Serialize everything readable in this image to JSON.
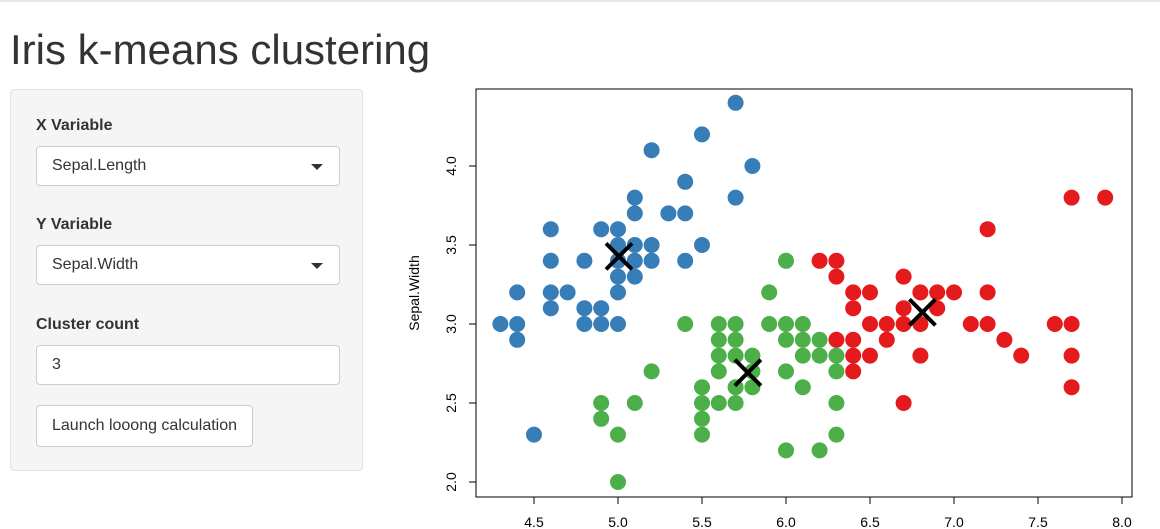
{
  "title": "Iris k-means clustering",
  "sidebar": {
    "x_label": "X Variable",
    "x_value": "Sepal.Length",
    "y_label": "Y Variable",
    "y_value": "Sepal.Width",
    "count_label": "Cluster count",
    "count_value": "3",
    "button_label": "Launch looong calculation"
  },
  "chart_data": {
    "type": "scatter",
    "xlabel": "",
    "ylabel": "Sepal.Width",
    "xlim": [
      4.3,
      8.0
    ],
    "ylim": [
      2.0,
      4.4
    ],
    "x_ticks": [
      "4.5",
      "5.0",
      "5.5",
      "6.0",
      "6.5",
      "7.0",
      "7.5",
      "8.0"
    ],
    "y_ticks": [
      "2.0",
      "2.5",
      "3.0",
      "3.5",
      "4.0"
    ],
    "colors": {
      "1": "#377eb8",
      "2": "#4daf4a",
      "3": "#e41a1c"
    },
    "centers": [
      [
        5.006,
        3.428
      ],
      [
        5.773,
        2.692
      ],
      [
        6.812,
        3.074
      ]
    ],
    "points": [
      [
        5.1,
        3.5,
        1
      ],
      [
        4.9,
        3.0,
        1
      ],
      [
        4.7,
        3.2,
        1
      ],
      [
        4.6,
        3.1,
        1
      ],
      [
        5.0,
        3.6,
        1
      ],
      [
        5.4,
        3.9,
        1
      ],
      [
        4.6,
        3.4,
        1
      ],
      [
        5.0,
        3.4,
        1
      ],
      [
        4.4,
        2.9,
        1
      ],
      [
        4.9,
        3.1,
        1
      ],
      [
        5.4,
        3.7,
        1
      ],
      [
        4.8,
        3.4,
        1
      ],
      [
        4.8,
        3.0,
        1
      ],
      [
        4.3,
        3.0,
        1
      ],
      [
        5.8,
        4.0,
        1
      ],
      [
        5.7,
        4.4,
        1
      ],
      [
        5.7,
        3.8,
        1
      ],
      [
        5.1,
        3.8,
        1
      ],
      [
        5.4,
        3.4,
        1
      ],
      [
        5.1,
        3.7,
        1
      ],
      [
        4.6,
        3.6,
        1
      ],
      [
        5.1,
        3.3,
        1
      ],
      [
        5.0,
        3.0,
        1
      ],
      [
        5.2,
        3.5,
        1
      ],
      [
        5.2,
        3.4,
        1
      ],
      [
        4.8,
        3.1,
        1
      ],
      [
        5.2,
        4.1,
        1
      ],
      [
        5.5,
        4.2,
        1
      ],
      [
        5.0,
        3.2,
        1
      ],
      [
        5.5,
        3.5,
        1
      ],
      [
        4.9,
        3.6,
        1
      ],
      [
        4.4,
        3.0,
        1
      ],
      [
        5.1,
        3.4,
        1
      ],
      [
        5.0,
        3.5,
        1
      ],
      [
        4.5,
        2.3,
        1
      ],
      [
        4.4,
        3.2,
        1
      ],
      [
        4.6,
        3.2,
        1
      ],
      [
        5.3,
        3.7,
        1
      ],
      [
        5.0,
        3.3,
        1
      ],
      [
        5.5,
        2.3,
        2
      ],
      [
        5.7,
        2.8,
        2
      ],
      [
        4.9,
        2.4,
        2
      ],
      [
        5.2,
        2.7,
        2
      ],
      [
        5.0,
        2.0,
        2
      ],
      [
        5.9,
        3.0,
        2
      ],
      [
        6.0,
        2.2,
        2
      ],
      [
        6.1,
        2.9,
        2
      ],
      [
        5.6,
        2.9,
        2
      ],
      [
        5.6,
        3.0,
        2
      ],
      [
        5.8,
        2.7,
        2
      ],
      [
        6.2,
        2.2,
        2
      ],
      [
        5.6,
        2.5,
        2
      ],
      [
        5.9,
        3.2,
        2
      ],
      [
        6.1,
        2.8,
        2
      ],
      [
        6.3,
        2.5,
        2
      ],
      [
        6.0,
        2.9,
        2
      ],
      [
        5.7,
        2.6,
        2
      ],
      [
        5.5,
        2.4,
        2
      ],
      [
        6.0,
        2.7,
        2
      ],
      [
        5.4,
        3.0,
        2
      ],
      [
        6.0,
        3.4,
        2
      ],
      [
        6.3,
        2.3,
        2
      ],
      [
        5.5,
        2.5,
        2
      ],
      [
        5.5,
        2.6,
        2
      ],
      [
        6.1,
        3.0,
        2
      ],
      [
        5.8,
        2.6,
        2
      ],
      [
        5.0,
        2.3,
        2
      ],
      [
        5.6,
        2.7,
        2
      ],
      [
        5.7,
        3.0,
        2
      ],
      [
        5.7,
        2.9,
        2
      ],
      [
        6.2,
        2.9,
        2
      ],
      [
        5.1,
        2.5,
        2
      ],
      [
        4.9,
        2.5,
        2
      ],
      [
        5.7,
        2.5,
        2
      ],
      [
        5.8,
        2.8,
        2
      ],
      [
        5.6,
        2.8,
        2
      ],
      [
        6.3,
        2.7,
        2
      ],
      [
        6.2,
        2.8,
        2
      ],
      [
        6.3,
        2.8,
        2
      ],
      [
        6.1,
        2.6,
        2
      ],
      [
        6.0,
        3.0,
        2
      ],
      [
        7.0,
        3.2,
        3
      ],
      [
        6.4,
        3.2,
        3
      ],
      [
        6.9,
        3.1,
        3
      ],
      [
        6.5,
        2.8,
        3
      ],
      [
        6.3,
        3.3,
        3
      ],
      [
        6.6,
        2.9,
        3
      ],
      [
        6.7,
        3.1,
        3
      ],
      [
        6.4,
        2.9,
        3
      ],
      [
        6.6,
        3.0,
        3
      ],
      [
        6.8,
        2.8,
        3
      ],
      [
        6.7,
        3.0,
        3
      ],
      [
        7.1,
        3.0,
        3
      ],
      [
        6.3,
        2.9,
        3
      ],
      [
        6.5,
        3.0,
        3
      ],
      [
        7.6,
        3.0,
        3
      ],
      [
        7.3,
        2.9,
        3
      ],
      [
        6.7,
        2.5,
        3
      ],
      [
        7.2,
        3.6,
        3
      ],
      [
        6.5,
        3.2,
        3
      ],
      [
        6.4,
        2.7,
        3
      ],
      [
        6.8,
        3.0,
        3
      ],
      [
        7.7,
        3.8,
        3
      ],
      [
        7.7,
        2.6,
        3
      ],
      [
        6.9,
        3.2,
        3
      ],
      [
        7.7,
        2.8,
        3
      ],
      [
        6.7,
        3.3,
        3
      ],
      [
        7.2,
        3.2,
        3
      ],
      [
        6.4,
        2.8,
        3
      ],
      [
        7.2,
        3.0,
        3
      ],
      [
        7.4,
        2.8,
        3
      ],
      [
        7.9,
        3.8,
        3
      ],
      [
        7.7,
        3.0,
        3
      ],
      [
        6.3,
        3.4,
        3
      ],
      [
        6.4,
        3.1,
        3
      ],
      [
        6.8,
        3.2,
        3
      ],
      [
        6.2,
        3.4,
        3
      ]
    ]
  }
}
